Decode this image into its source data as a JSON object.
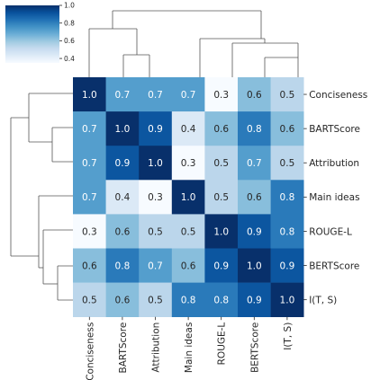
{
  "chart_data": {
    "type": "heatmap",
    "subtype": "clustermap",
    "rows": [
      "Conciseness",
      "BARTScore",
      "Attribution",
      "Main ideas",
      "ROUGE-L",
      "BERTScore",
      "I(T, S)"
    ],
    "columns": [
      "Conciseness",
      "BARTScore",
      "Attribution",
      "Main ideas",
      "ROUGE-L",
      "BERTScore",
      "I(T, S)"
    ],
    "values": [
      [
        1.0,
        0.7,
        0.7,
        0.7,
        0.3,
        0.6,
        0.5
      ],
      [
        0.7,
        1.0,
        0.9,
        0.4,
        0.6,
        0.8,
        0.6
      ],
      [
        0.7,
        0.9,
        1.0,
        0.3,
        0.5,
        0.7,
        0.5
      ],
      [
        0.7,
        0.4,
        0.3,
        1.0,
        0.5,
        0.6,
        0.8
      ],
      [
        0.3,
        0.6,
        0.5,
        0.5,
        1.0,
        0.9,
        0.8
      ],
      [
        0.6,
        0.8,
        0.7,
        0.6,
        0.9,
        1.0,
        0.9
      ],
      [
        0.5,
        0.6,
        0.5,
        0.8,
        0.8,
        0.9,
        1.0
      ]
    ],
    "value_labels": [
      [
        "1.0",
        "0.7",
        "0.7",
        "0.7",
        "0.3",
        "0.6",
        "0.5"
      ],
      [
        "0.7",
        "1.0",
        "0.9",
        "0.4",
        "0.6",
        "0.8",
        "0.6"
      ],
      [
        "0.7",
        "0.9",
        "1.0",
        "0.3",
        "0.5",
        "0.7",
        "0.5"
      ],
      [
        "0.7",
        "0.4",
        "0.3",
        "1.0",
        "0.5",
        "0.6",
        "0.8"
      ],
      [
        "0.3",
        "0.6",
        "0.5",
        "0.5",
        "1.0",
        "0.9",
        "0.8"
      ],
      [
        "0.6",
        "0.8",
        "0.7",
        "0.6",
        "0.9",
        "1.0",
        "0.9"
      ],
      [
        "0.5",
        "0.6",
        "0.5",
        "0.8",
        "0.8",
        "0.9",
        "1.0"
      ]
    ],
    "colormap": "Blues",
    "color_range": [
      0.3,
      1.0
    ],
    "colorbar": {
      "ticks": [
        1.0,
        0.8,
        0.6,
        0.4
      ],
      "tick_labels": [
        "1.0",
        "0.8",
        "0.6",
        "0.4"
      ],
      "placement": "top-left"
    },
    "dendrograms": [
      "top",
      "left"
    ],
    "grid": false
  }
}
